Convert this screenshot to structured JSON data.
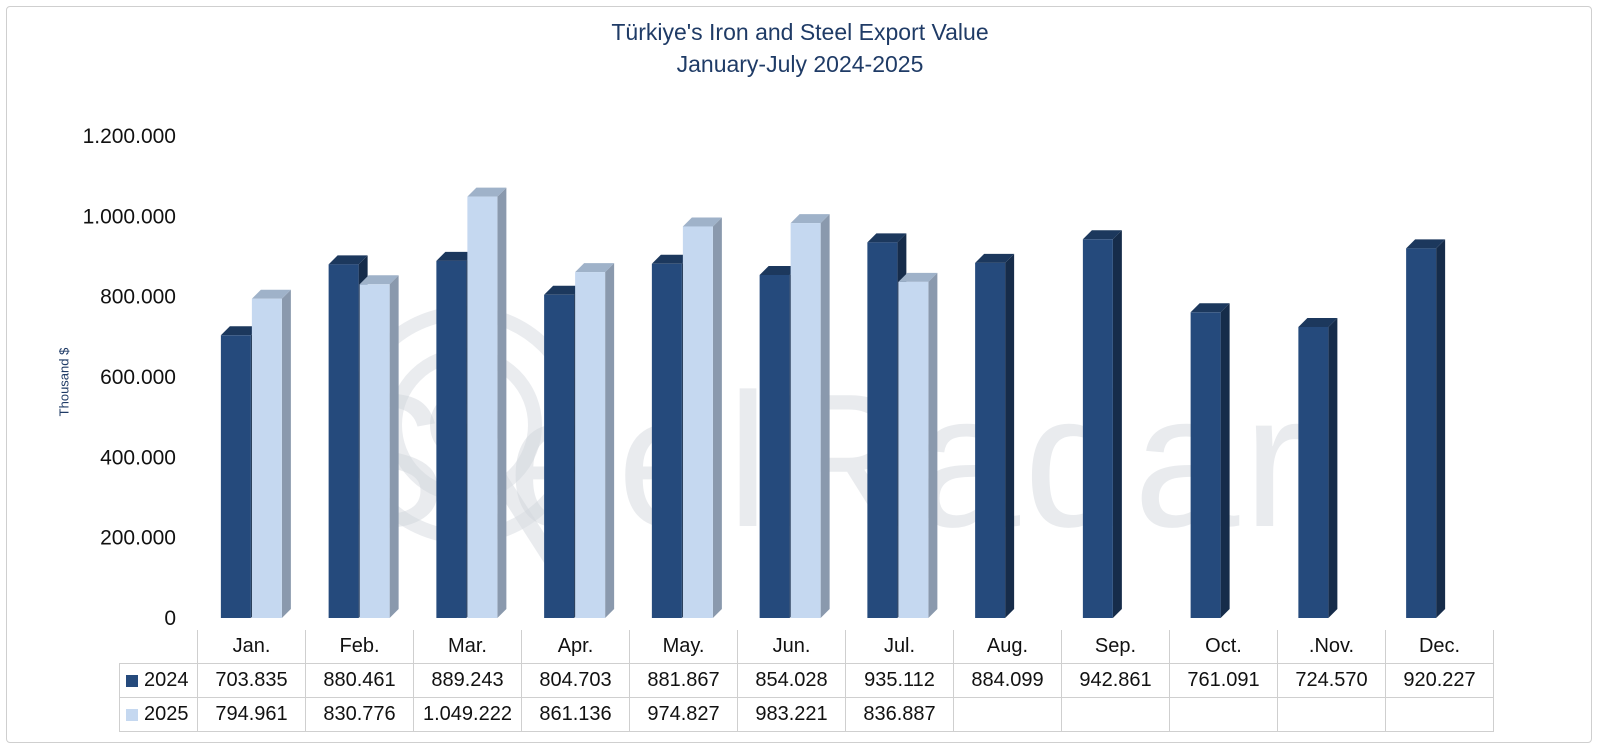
{
  "chart_data": {
    "type": "bar",
    "title": "Türkiye's Iron and Steel Export Value",
    "subtitle": "January-July 2024-2025",
    "ylabel": "Thousand $",
    "ylim": [
      0,
      1200000
    ],
    "yticks": [
      0,
      200000,
      400000,
      600000,
      800000,
      1000000,
      1200000
    ],
    "ytick_labels": [
      "0",
      "200.000",
      "400.000",
      "600.000",
      "800.000",
      "1.000.000",
      "1.200.000"
    ],
    "categories": [
      "Jan.",
      "Feb.",
      "Mar.",
      "Apr.",
      "May.",
      "Jun.",
      "Jul.",
      "Aug.",
      "Sep.",
      "Oct.",
      ".Nov.",
      "Dec."
    ],
    "series": [
      {
        "name": "2024",
        "color": "#254a7c",
        "values": [
          703835,
          880461,
          889243,
          804703,
          881867,
          854028,
          935112,
          884099,
          942861,
          761091,
          724570,
          920227
        ],
        "labels": [
          "703.835",
          "880.461",
          "889.243",
          "804.703",
          "881.867",
          "854.028",
          "935.112",
          "884.099",
          "942.861",
          "761.091",
          "724.570",
          "920.227"
        ]
      },
      {
        "name": "2025",
        "color": "#c5d8f0",
        "values": [
          794961,
          830776,
          1049222,
          861136,
          974827,
          983221,
          836887,
          null,
          null,
          null,
          null,
          null
        ],
        "labels": [
          "794.961",
          "830.776",
          "1.049.222",
          "861.136",
          "974.827",
          "983.221",
          "836.887",
          "",
          "",
          "",
          "",
          ""
        ]
      }
    ],
    "grid": false,
    "legend": "data-table"
  },
  "watermark": "SteelRadar"
}
